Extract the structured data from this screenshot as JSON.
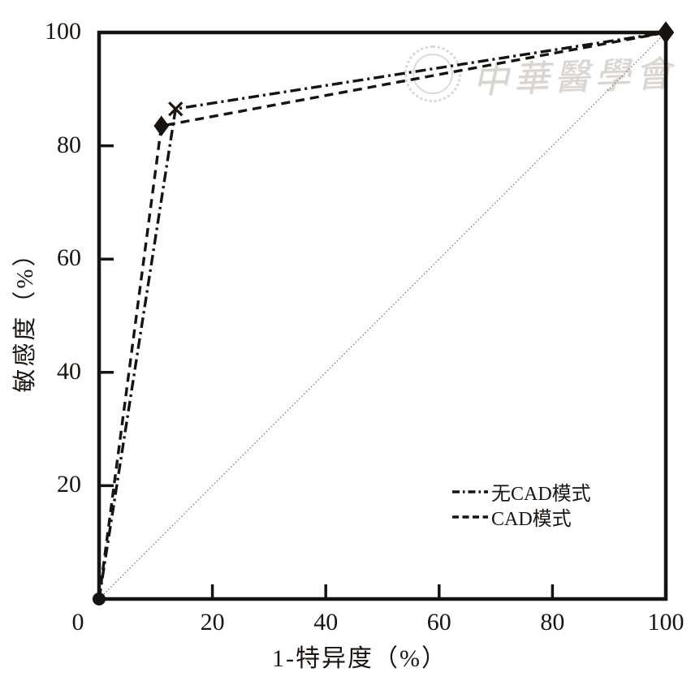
{
  "figure": {
    "background": "#ffffff",
    "axis_color": "#171310",
    "series_color": "#171310",
    "diagonal_color": "#7a6a62",
    "watermark_color": "#d8d4d0"
  },
  "watermark": {
    "text": "中華醫學會",
    "logo": "cma-seal-logo"
  },
  "chart_data": {
    "type": "line",
    "title": "",
    "xlabel": "1-特异度（%）",
    "ylabel": "敏感度（%）",
    "xlim": [
      0,
      100
    ],
    "ylim": [
      0,
      100
    ],
    "x_ticks": [
      0,
      20,
      40,
      60,
      80,
      100
    ],
    "y_ticks": [
      20,
      40,
      60,
      80,
      100
    ],
    "grid": false,
    "legend_position": "inside-lower-right",
    "series": [
      {
        "name": "无CAD模式",
        "dash": "dashdot",
        "marker": "x",
        "points": [
          [
            0,
            0
          ],
          [
            13.5,
            86.5
          ],
          [
            100,
            100
          ]
        ]
      },
      {
        "name": "CAD模式",
        "dash": "dashed",
        "marker": "diamond",
        "points": [
          [
            0,
            0
          ],
          [
            11,
            83.5
          ],
          [
            100,
            100
          ]
        ]
      }
    ],
    "markers": [
      {
        "shape": "circle",
        "x": 0,
        "y": 0,
        "size": 8
      },
      {
        "shape": "x",
        "x": 13.5,
        "y": 86.5,
        "size": 8
      },
      {
        "shape": "diamond",
        "x": 11,
        "y": 83.5,
        "size": 11
      },
      {
        "shape": "diamond",
        "x": 100,
        "y": 100,
        "size": 12
      }
    ],
    "reference_line": {
      "points": [
        [
          0,
          0
        ],
        [
          100,
          100
        ]
      ],
      "style": "dotted"
    }
  },
  "legend": {
    "items": [
      {
        "label": "无CAD模式"
      },
      {
        "label": "CAD模式"
      }
    ]
  }
}
